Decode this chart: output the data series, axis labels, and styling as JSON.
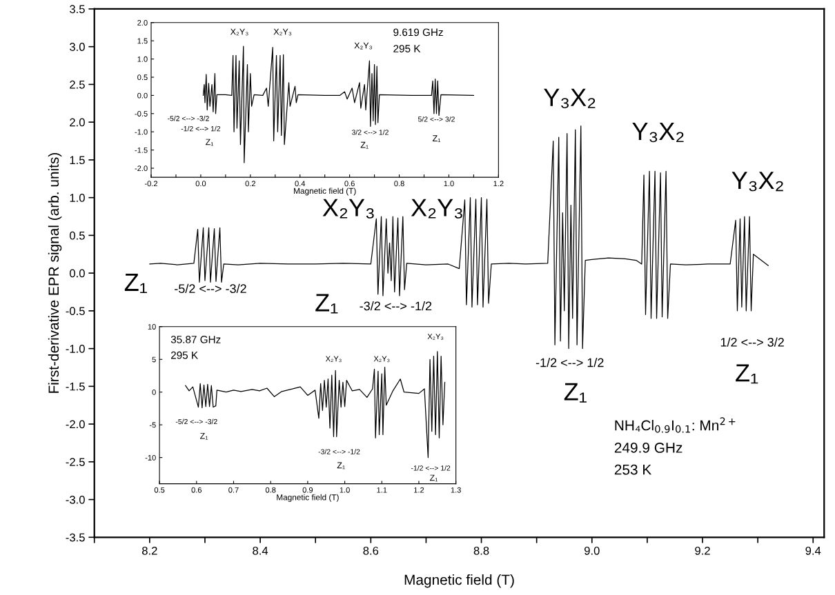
{
  "chart_data": [
    {
      "type": "line",
      "xlabel": "Magnetic field (T)",
      "ylabel": "First-derivative EPR signal (arb. units)",
      "xlim": [
        8.1,
        9.42
      ],
      "ylim": [
        -3.5,
        3.5
      ],
      "xticks": [
        {
          "value": 8.1,
          "label": null
        },
        8.2,
        {
          "value": 8.3,
          "label": null
        },
        8.4,
        {
          "value": 8.5,
          "label": null
        },
        8.6,
        {
          "value": 8.7,
          "label": null
        },
        8.8,
        {
          "value": 8.9,
          "label": null
        },
        {
          "value": 9,
          "label": "9.0"
        },
        {
          "value": 9.1,
          "label": null
        },
        9.2,
        {
          "value": 9.3,
          "label": null
        },
        9.4
      ],
      "yticks": [
        -3.5,
        {
          "value": -3,
          "label": "-3.0"
        },
        -2.5,
        {
          "value": -2,
          "label": "-2.0"
        },
        -1.5,
        {
          "value": -1,
          "label": "-1.0"
        },
        -0.5,
        {
          "value": 0,
          "label": "0.0"
        },
        0.5,
        {
          "value": 1,
          "label": "1.0"
        },
        1.5,
        {
          "value": 2,
          "label": "2.0"
        },
        2.5,
        {
          "value": 3,
          "label": "3.0"
        },
        3.5
      ],
      "series": [
        {
          "color": "#000000",
          "x": [
            8.2,
            8.22,
            8.25,
            8.28,
            8.287,
            8.29,
            8.297,
            8.3,
            8.307,
            8.31,
            8.317,
            8.32,
            8.327,
            8.33,
            8.334,
            8.36,
            8.4,
            8.45,
            8.5,
            8.55,
            8.6,
            8.61,
            8.613,
            8.619,
            8.622,
            8.628,
            8.631,
            8.634,
            8.637,
            8.64,
            8.643,
            8.649,
            8.652,
            8.658,
            8.661,
            8.665,
            8.7,
            8.74,
            8.76,
            8.77,
            8.773,
            8.78,
            8.783,
            8.79,
            8.793,
            8.8,
            8.803,
            8.81,
            8.813,
            8.818,
            8.85,
            8.88,
            8.92,
            8.93,
            8.933,
            8.94,
            8.943,
            8.947,
            8.95,
            8.955,
            8.958,
            8.962,
            8.965,
            8.97,
            8.973,
            8.98,
            8.983,
            8.988,
            9.0,
            9.03,
            9.06,
            9.08,
            9.09,
            9.094,
            9.097,
            9.104,
            9.107,
            9.114,
            9.117,
            9.124,
            9.127,
            9.134,
            9.137,
            9.142,
            9.17,
            9.21,
            9.25,
            9.26,
            9.263,
            9.268,
            9.271,
            9.276,
            9.279,
            9.285,
            9.288,
            9.292,
            9.319
          ],
          "values": [
            0.12,
            0.13,
            0.11,
            0.13,
            0.58,
            -0.12,
            0.6,
            -0.1,
            0.6,
            -0.12,
            0.59,
            -0.11,
            0.6,
            -0.12,
            0.12,
            0.11,
            0.13,
            0.12,
            0.12,
            0.13,
            0.12,
            0.72,
            -0.28,
            0.75,
            -0.3,
            0.72,
            0.0,
            0.4,
            -0.1,
            0.75,
            -0.25,
            0.73,
            -0.3,
            0.75,
            -0.22,
            0.13,
            0.11,
            0.12,
            0.06,
            0.97,
            -0.42,
            1.0,
            -0.45,
            0.98,
            -0.42,
            1.0,
            -0.45,
            0.98,
            -0.4,
            0.12,
            0.13,
            0.12,
            0.13,
            1.75,
            -0.95,
            1.8,
            -0.9,
            0.8,
            -0.5,
            1.85,
            -1.0,
            0.9,
            -0.6,
            1.9,
            -0.95,
            1.95,
            -1.0,
            0.17,
            0.18,
            0.2,
            0.19,
            0.17,
            0.12,
            1.3,
            -0.55,
            1.35,
            -0.6,
            1.35,
            -0.6,
            1.33,
            -0.58,
            1.35,
            -0.6,
            0.12,
            0.11,
            0.12,
            0.12,
            0.7,
            -0.5,
            0.72,
            -0.45,
            0.75,
            -0.5,
            0.75,
            -0.5,
            0.25,
            0.1
          ]
        }
      ],
      "annotations": [
        "Z₁",
        "-5/2 <--> -3/2",
        "X₂Y₃",
        "X₂Y₃",
        "Z₁",
        "-3/2 <--> -1/2",
        "Y₃X₂",
        "Y₃X₂",
        "Y₃X₂",
        "-1/2 <--> 1/2",
        "Z₁",
        "1/2 <--> 3/2",
        "Z₁",
        "NH₄Cl$_{0.9}$I$_{0.1}$: Mn$^{2+}$",
        "249.9 GHz",
        "253 K"
      ]
    },
    {
      "type": "line",
      "xlabel": "Magnetic field (T)",
      "xlim": [
        -0.2,
        1.2
      ],
      "ylim": [
        -2.25,
        2.0
      ],
      "xticks": [
        {
          "value": -0.2,
          "label": "-0.2"
        },
        {
          "value": -0.1,
          "label": null
        },
        {
          "value": 0,
          "label": "0.0"
        },
        {
          "value": 0.1,
          "label": null
        },
        0.2,
        {
          "value": 0.3,
          "label": null
        },
        0.4,
        {
          "value": 0.5,
          "label": null
        },
        0.6,
        {
          "value": 0.7,
          "label": null
        },
        0.8,
        {
          "value": 0.9,
          "label": null
        },
        {
          "value": 1,
          "label": "1.0"
        },
        {
          "value": 1.1,
          "label": null
        },
        1.2
      ],
      "yticks": [
        {
          "value": -2,
          "label": "-2.0"
        },
        -1.5,
        {
          "value": -1,
          "label": "-1.0"
        },
        -0.5,
        {
          "value": 0,
          "label": "0.0"
        },
        0.5,
        {
          "value": 1,
          "label": "1.0"
        },
        1.5,
        {
          "value": 2,
          "label": "2.0"
        }
      ],
      "series": [
        {
          "color": "#000000",
          "x": [
            0.01,
            0.014,
            0.017,
            0.022,
            0.026,
            0.032,
            0.037,
            0.045,
            0.05,
            0.057,
            0.06,
            0.065,
            0.1,
            0.125,
            0.13,
            0.134,
            0.142,
            0.146,
            0.155,
            0.16,
            0.172,
            0.175,
            0.188,
            0.192,
            0.2,
            0.205,
            0.215,
            0.25,
            0.265,
            0.272,
            0.29,
            0.294,
            0.305,
            0.31,
            0.32,
            0.325,
            0.333,
            0.337,
            0.355,
            0.36,
            0.38,
            0.385,
            0.392,
            0.5,
            0.56,
            0.58,
            0.59,
            0.61,
            0.62,
            0.64,
            0.645,
            0.66,
            0.665,
            0.68,
            0.684,
            0.69,
            0.695,
            0.7,
            0.704,
            0.71,
            0.714,
            0.72,
            0.85,
            0.93,
            0.935,
            0.94,
            0.945,
            0.95,
            0.955,
            0.96,
            0.968,
            1.1
          ],
          "values": [
            0.0,
            0.3,
            -0.2,
            0.58,
            -0.4,
            0.33,
            -0.3,
            0.3,
            -0.45,
            0.6,
            -0.5,
            0.02,
            0.02,
            0.0,
            1.1,
            -1.0,
            1.1,
            -0.9,
            0.95,
            -1.35,
            1.35,
            -1.85,
            0.85,
            -1.0,
            0.6,
            -0.3,
            0.02,
            0.0,
            0.2,
            -0.3,
            1.32,
            -1.25,
            1.1,
            -1.0,
            1.1,
            -1.1,
            1.12,
            -1.35,
            0.35,
            -0.3,
            0.25,
            -0.2,
            0.02,
            0.0,
            0.0,
            0.1,
            -0.1,
            0.2,
            -0.2,
            0.35,
            -0.35,
            0.3,
            -0.4,
            0.95,
            -0.85,
            0.6,
            -0.7,
            0.85,
            -0.8,
            0.8,
            -0.75,
            0.02,
            0.0,
            0.0,
            0.4,
            -0.5,
            0.45,
            -0.5,
            0.4,
            -0.55,
            0.02,
            0.0
          ]
        }
      ],
      "annotations": [
        "X₂Y₃",
        "X₂Y₃",
        "X₂Y₃",
        "9.619 GHz",
        "295 K",
        "-5/2 <--> -3/2",
        "-1/2 <--> 1/2",
        "Z₁",
        "3/2 <--> 1/2",
        "Z₁",
        "5/2 <--> 3/2",
        "Z₁"
      ]
    },
    {
      "type": "line",
      "xlabel": "Magnetic field (T)",
      "xlim": [
        0.5,
        1.3
      ],
      "ylim": [
        -14,
        10
      ],
      "xticks": [
        0.5,
        0.6,
        0.7,
        0.8,
        0.9,
        {
          "value": 1,
          "label": "1.0"
        },
        1.1,
        1.2,
        1.3
      ],
      "yticks": [
        -10,
        -5,
        0,
        5,
        10
      ],
      "series": [
        {
          "color": "#000000",
          "x": [
            0.57,
            0.58,
            0.59,
            0.605,
            0.61,
            0.615,
            0.62,
            0.625,
            0.63,
            0.635,
            0.64,
            0.645,
            0.652,
            0.655,
            0.68,
            0.7,
            0.72,
            0.75,
            0.77,
            0.79,
            0.81,
            0.83,
            0.86,
            0.88,
            0.9,
            0.92,
            0.93,
            0.935,
            0.94,
            0.945,
            0.95,
            0.955,
            0.96,
            0.965,
            0.97,
            0.975,
            0.978,
            0.985,
            0.99,
            0.995,
            1.0,
            1.005,
            1.02,
            1.04,
            1.06,
            1.075,
            1.08,
            1.083,
            1.09,
            1.093,
            1.1,
            1.103,
            1.108,
            1.112,
            1.13,
            1.15,
            1.16,
            1.2,
            1.215,
            1.225,
            1.23,
            1.235,
            1.24,
            1.245,
            1.25,
            1.255,
            1.26,
            1.265,
            1.27
          ],
          "values": [
            1.0,
            0.2,
            0.8,
            -2.3,
            1.3,
            -2.4,
            1.1,
            -2.2,
            1.2,
            -2.2,
            1.0,
            -2.3,
            -2.1,
            0.3,
            0.0,
            0.3,
            0.1,
            0.4,
            0.2,
            0.6,
            -0.7,
            0.1,
            0.5,
            0.8,
            -0.5,
            0.3,
            -4.0,
            1.3,
            -2.8,
            1.8,
            -2.3,
            2.0,
            -5.5,
            2.6,
            -6.8,
            3.3,
            -6.8,
            1.8,
            -2.3,
            1.5,
            -2.2,
            1.8,
            0.2,
            0.4,
            -0.8,
            0.5,
            3.5,
            -7.0,
            3.2,
            -6.5,
            2.8,
            -6.5,
            3.8,
            -2.0,
            0.2,
            2.0,
            0.0,
            -0.2,
            0.5,
            -10.0,
            5.0,
            -6.0,
            5.5,
            -6.5,
            6.2,
            -7.0,
            5.5,
            -5.0,
            1.5
          ]
        }
      ],
      "annotations": [
        "35.87 GHz",
        "295 K",
        "X₂Y₃",
        "X₂Y₃",
        "X₂Y₃",
        "-5/2 <--> -3/2",
        "Z₁",
        "-3/2 <--> -1/2",
        "Z₁",
        "-1/2 <--> 1/2",
        "Z₁"
      ]
    }
  ]
}
